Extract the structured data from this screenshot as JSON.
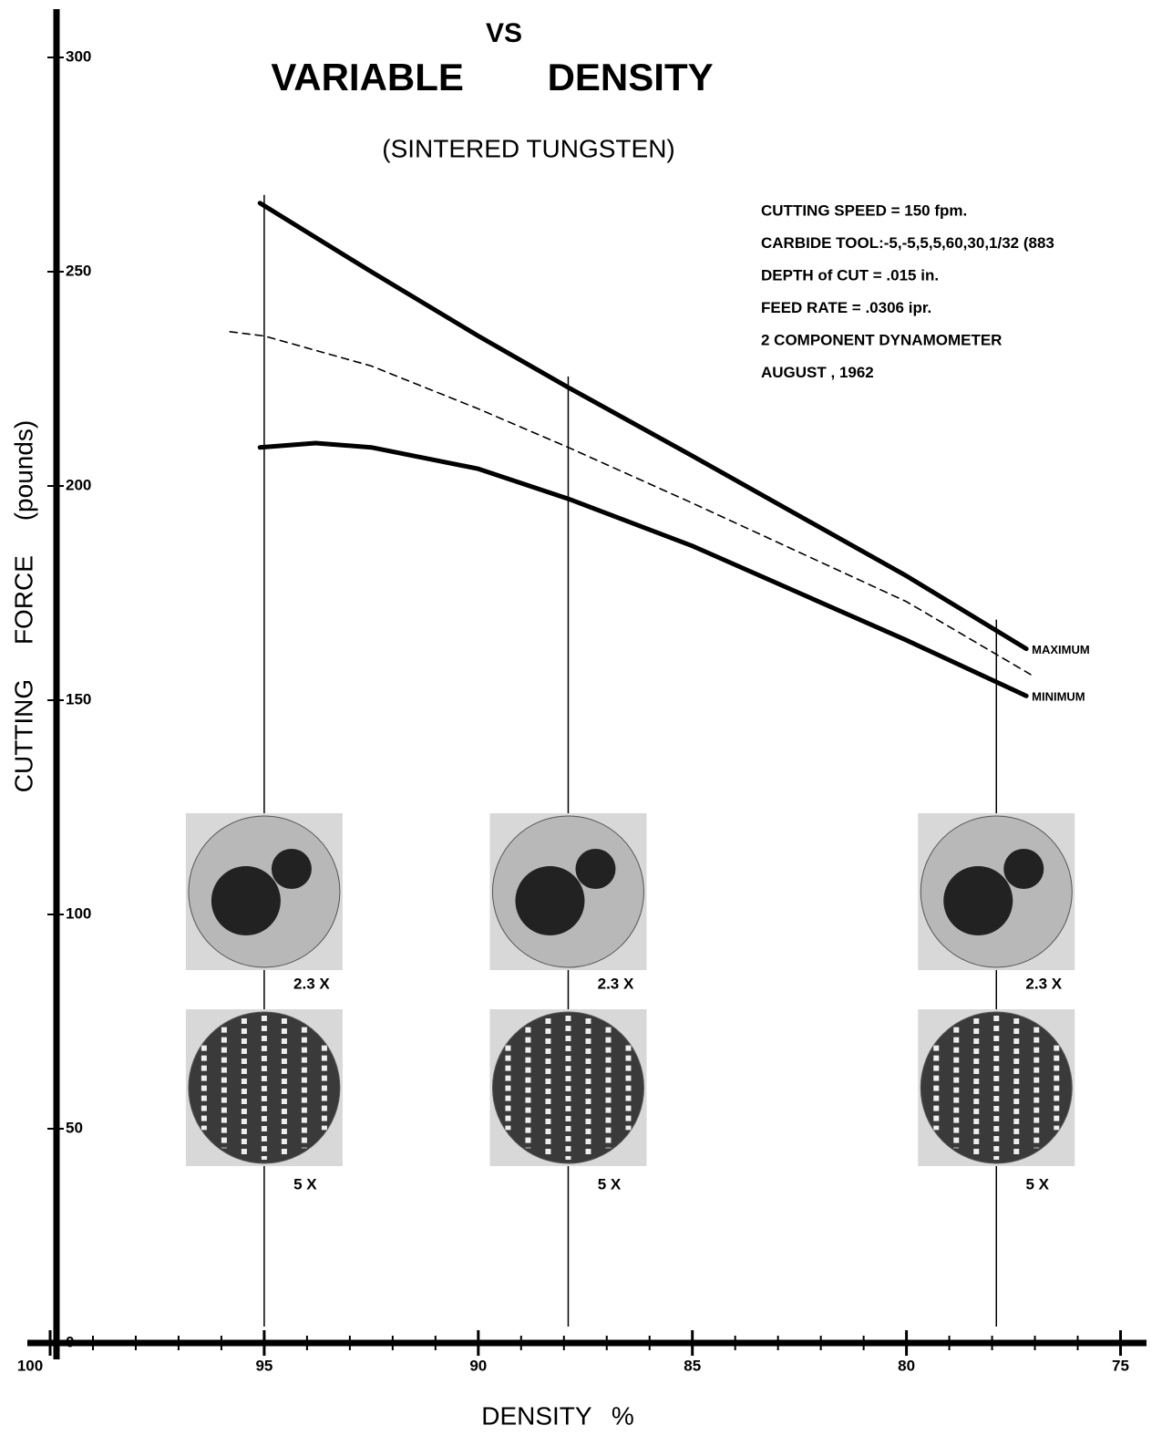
{
  "chart_data": {
    "type": "line",
    "title_lines": [
      "VS",
      "VARIABLE DENSITY"
    ],
    "subtitle": "(SINTERED TUNGSTEN)",
    "x_label": "DENSITY %",
    "y_label": "CUTTING FORCE (pounds)",
    "notes": [
      "CUTTING SPEED = 150 fpm.",
      "CARBIDE TOOL:-5,-5,5,5,60,30,1/32 (883",
      "DEPTH of CUT = .015 in.",
      "FEED RATE = .0306 ipr.",
      "2 COMPONENT DYNAMOMETER",
      "AUGUST , 1962"
    ],
    "xlim": [
      100,
      74.5
    ],
    "ylim": [
      0,
      310
    ],
    "xticks": [
      100,
      95,
      90,
      85,
      80,
      75
    ],
    "xminor_ticks": [
      99,
      98,
      97,
      96,
      94,
      93,
      92,
      91,
      89,
      88,
      87,
      86,
      84,
      83,
      82,
      81,
      79,
      78,
      77,
      76
    ],
    "yticks": [
      0,
      50,
      100,
      150,
      200,
      250,
      300
    ],
    "series": [
      {
        "name": "MAXIMUM",
        "color": "#000000",
        "x": [
          95.1,
          92.5,
          90,
          87.9,
          85,
          82.5,
          80,
          77.2
        ],
        "values": [
          266,
          250,
          235,
          223,
          207,
          193,
          179,
          162
        ]
      },
      {
        "name": "MINIMUM",
        "color": "#000000",
        "x": [
          95.1,
          93.8,
          92.5,
          90,
          87.9,
          85,
          82.5,
          80,
          77.2
        ],
        "values": [
          209,
          210,
          209,
          204,
          197,
          186,
          175,
          164,
          151
        ]
      },
      {
        "color": "#000000",
        "dashed": true,
        "x": [
          95.8,
          95,
          92.5,
          90,
          87.9,
          85,
          80,
          77.1
        ],
        "values": [
          236,
          235,
          228,
          218,
          209,
          196,
          173,
          156
        ]
      }
    ],
    "samples": [
      {
        "density": 95,
        "labels": [
          "2.3 X",
          "5 X"
        ]
      },
      {
        "density": 87.9,
        "labels": [
          "2.3 X",
          "5 X"
        ]
      },
      {
        "density": 77.9,
        "labels": [
          "2.3 X",
          "5 X"
        ]
      }
    ]
  }
}
